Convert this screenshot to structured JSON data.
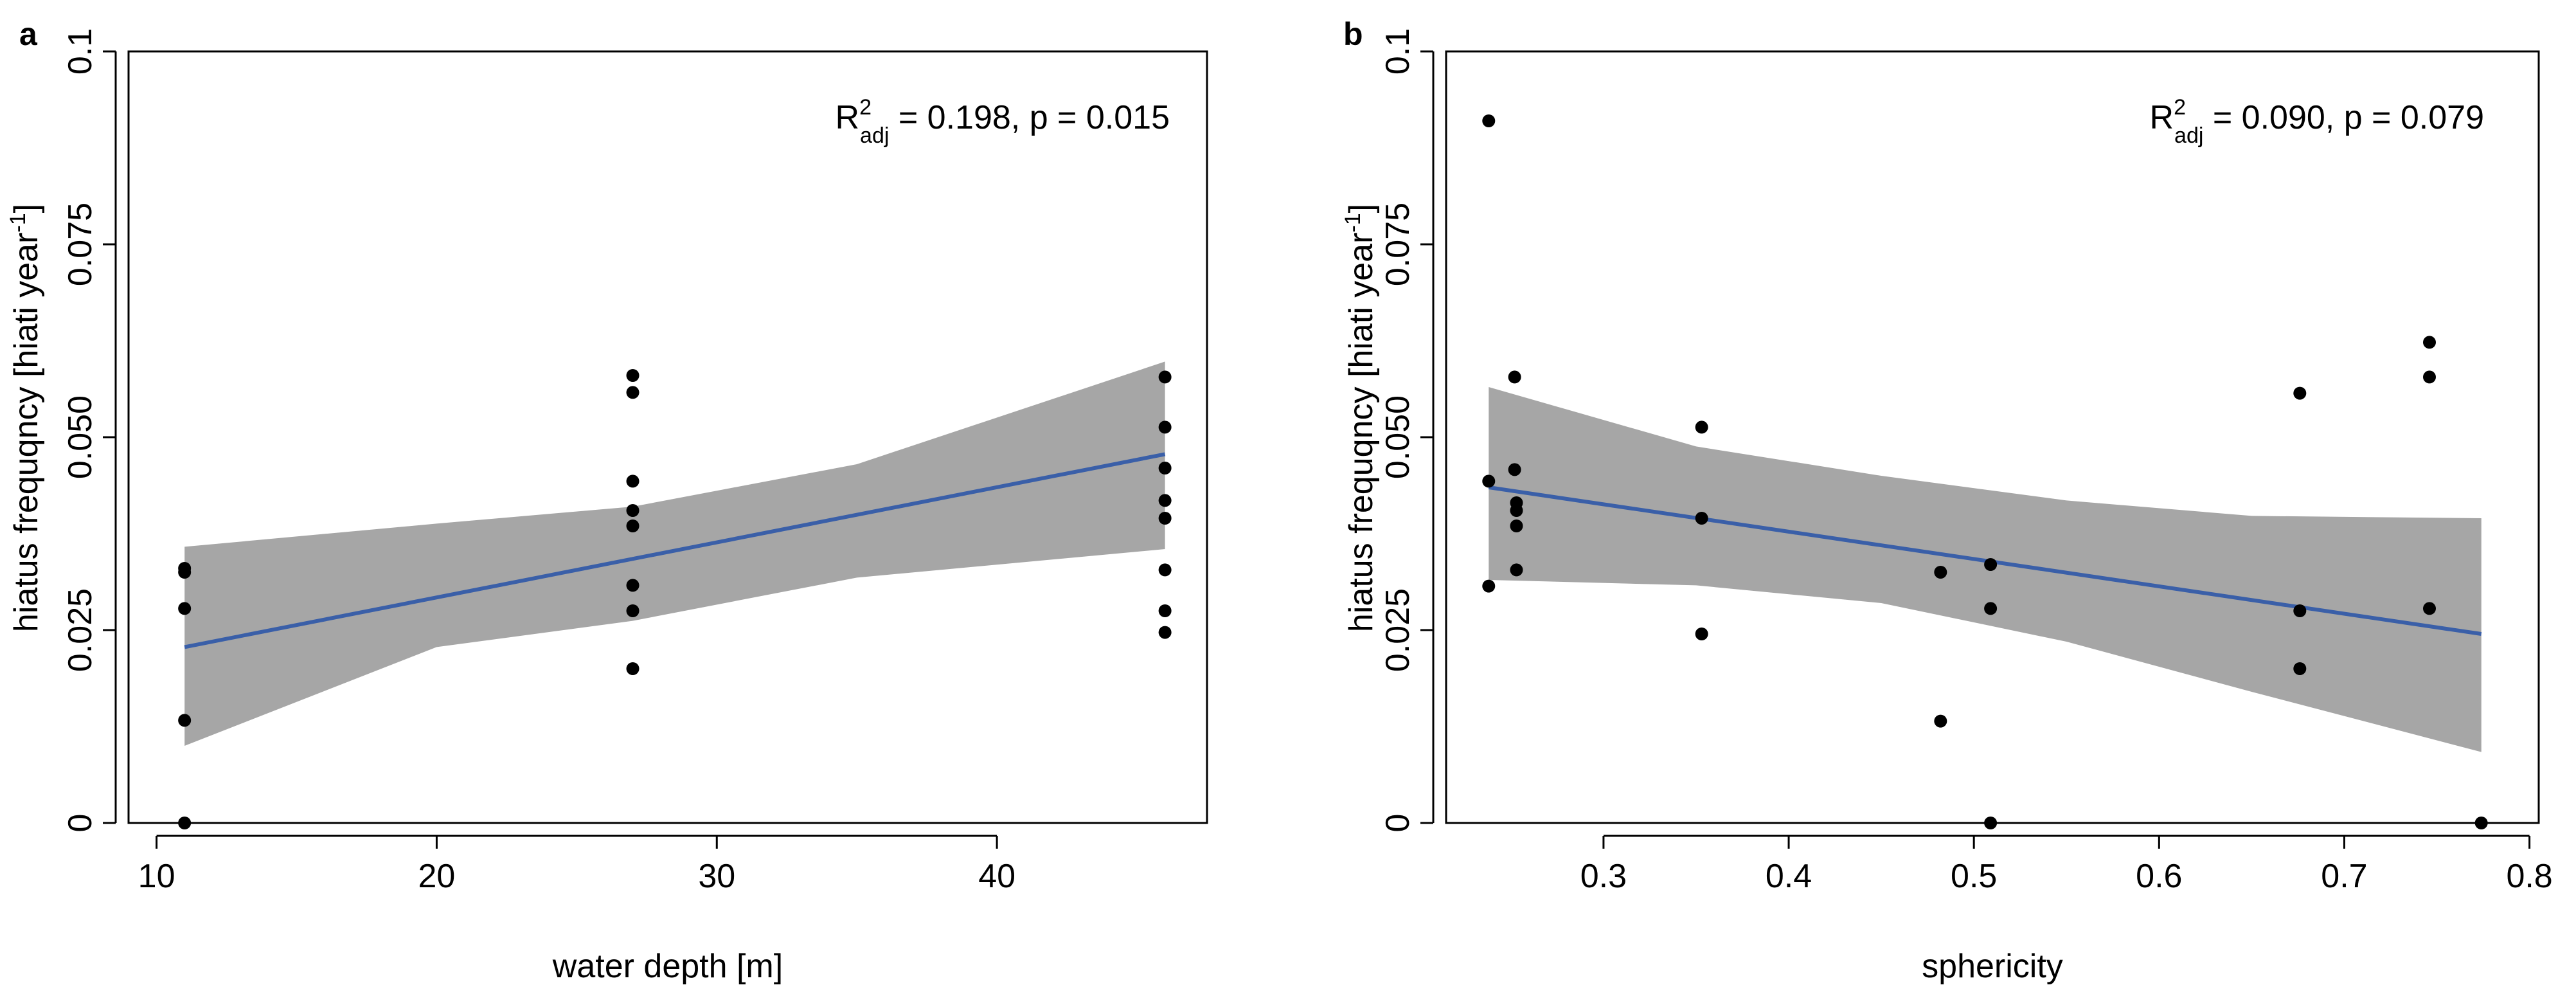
{
  "colors": {
    "fit_line": "#3a5fa8",
    "ci_band": "#a6a6a6",
    "points": "#000000",
    "axes": "#000000"
  },
  "chart_data": [
    {
      "type": "scatter",
      "panel_label": "a",
      "xlabel": "water depth [m]",
      "ylabel": "hiatus frequqncy [hiati year",
      "ylabel_sup": "-1",
      "ylabel_close": "]",
      "xlim": [
        9,
        47.5
      ],
      "ylim": [
        0,
        0.1
      ],
      "xticks": [
        10,
        20,
        30,
        40
      ],
      "xtick_labels": [
        "10",
        "20",
        "30",
        "40"
      ],
      "yticks": [
        0,
        0.025,
        0.05,
        0.075,
        0.1
      ],
      "ytick_labels": [
        "0",
        "0.025",
        "0.050",
        "0.075",
        "0.1"
      ],
      "annotation": {
        "r": "R",
        "r_sup": "2",
        "r_sub": "adj",
        "text": " = 0.198, p = 0.015"
      },
      "points": {
        "x": [
          11,
          11,
          11,
          11,
          11,
          27,
          27,
          27,
          27,
          27,
          27,
          27,
          27,
          46,
          46,
          46,
          46,
          46,
          46,
          46,
          46
        ],
        "y": [
          0.0325,
          0.033,
          0.0278,
          0.0133,
          0.0,
          0.058,
          0.0558,
          0.0443,
          0.0405,
          0.0385,
          0.0308,
          0.0275,
          0.02,
          0.0578,
          0.0513,
          0.046,
          0.0418,
          0.0395,
          0.0328,
          0.0275,
          0.0247
        ]
      },
      "fit": {
        "x": [
          11,
          46
        ],
        "y": [
          0.0228,
          0.0478
        ]
      },
      "ci_band": {
        "x": [
          11,
          20,
          27,
          35,
          46
        ],
        "upper": [
          0.0358,
          0.0388,
          0.041,
          0.0465,
          0.0598
        ],
        "lower": [
          0.01,
          0.0228,
          0.0262,
          0.0318,
          0.0355
        ]
      }
    },
    {
      "type": "scatter",
      "panel_label": "b",
      "xlabel": "sphericity",
      "ylabel": "hiatus frequqncy [hiati year",
      "ylabel_sup": "-1",
      "ylabel_close": "]",
      "xlim": [
        0.215,
        0.805
      ],
      "ylim": [
        0,
        0.1
      ],
      "xticks": [
        0.3,
        0.4,
        0.5,
        0.6,
        0.7,
        0.8
      ],
      "xtick_labels": [
        "0.3",
        "0.4",
        "0.5",
        "0.6",
        "0.7",
        "0.8"
      ],
      "yticks": [
        0,
        0.025,
        0.05,
        0.075,
        0.1
      ],
      "ytick_labels": [
        "0",
        "0.025",
        "0.050",
        "0.075",
        "0.1"
      ],
      "annotation": {
        "r": "R",
        "r_sup": "2",
        "r_sub": "adj",
        "text": " = 0.090, p = 0.079"
      },
      "points": {
        "x": [
          0.238,
          0.238,
          0.238,
          0.252,
          0.252,
          0.253,
          0.253,
          0.253,
          0.253,
          0.353,
          0.353,
          0.353,
          0.482,
          0.482,
          0.509,
          0.509,
          0.509,
          0.676,
          0.676,
          0.676,
          0.746,
          0.746,
          0.746,
          0.774
        ],
        "y": [
          0.091,
          0.0443,
          0.0307,
          0.0578,
          0.0458,
          0.0415,
          0.0405,
          0.0385,
          0.0328,
          0.0513,
          0.0395,
          0.0245,
          0.0325,
          0.0132,
          0.0335,
          0.0278,
          0.0,
          0.0557,
          0.0275,
          0.02,
          0.0623,
          0.0578,
          0.0278,
          0.0
        ]
      },
      "fit": {
        "x": [
          0.238,
          0.774
        ],
        "y": [
          0.0435,
          0.0245
        ]
      },
      "ci_band": {
        "x": [
          0.238,
          0.35,
          0.45,
          0.55,
          0.65,
          0.774
        ],
        "upper": [
          0.0565,
          0.0488,
          0.045,
          0.0418,
          0.0398,
          0.0395
        ],
        "lower": [
          0.0315,
          0.0308,
          0.0285,
          0.0235,
          0.017,
          0.0092
        ]
      }
    }
  ]
}
